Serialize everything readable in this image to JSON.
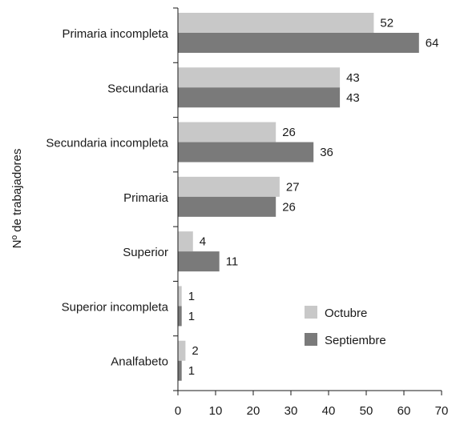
{
  "chart_data": {
    "type": "bar",
    "orientation": "horizontal",
    "ylabel": "Nº de trabajadores",
    "xlabel": "",
    "title": "",
    "categories": [
      "Primaria incompleta",
      "Secundaria",
      "Secundaria incompleta",
      "Primaria",
      "Superior",
      "Superior incompleta",
      "Analfabeto"
    ],
    "series": [
      {
        "name": "Octubre",
        "color": "#c8c8c8",
        "values": [
          52,
          43,
          26,
          27,
          4,
          1,
          2
        ]
      },
      {
        "name": "Septiembre",
        "color": "#7a7a7a",
        "values": [
          64,
          43,
          36,
          26,
          11,
          1,
          1
        ]
      }
    ],
    "xlim": [
      0,
      70
    ],
    "xticks": [
      0,
      10,
      20,
      30,
      40,
      50,
      60,
      70
    ],
    "grid": false,
    "legend_position": "bottom-right"
  }
}
